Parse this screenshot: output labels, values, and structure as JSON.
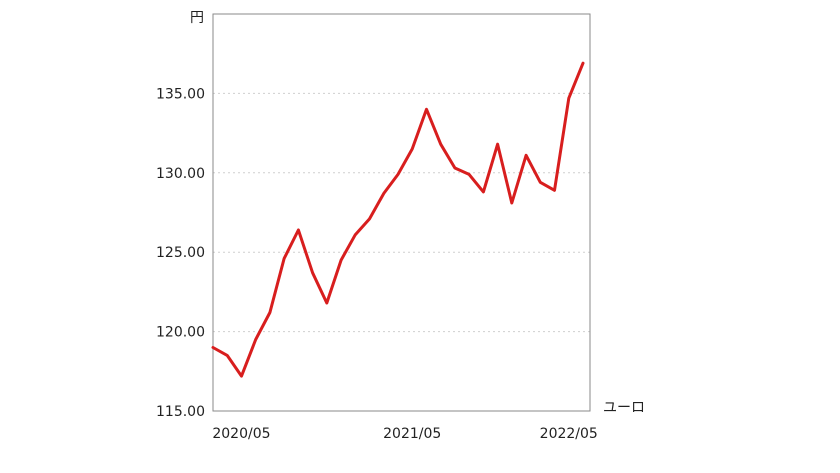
{
  "chart_data": {
    "type": "line",
    "y_unit": "円",
    "x_unit": "ユーロ",
    "ylim": [
      115,
      140
    ],
    "yticks": [
      115,
      120,
      125,
      130,
      135
    ],
    "ytick_labels": [
      "115.00",
      "120.00",
      "125.00",
      "130.00",
      "135.00"
    ],
    "xtick_labels": [
      {
        "index": 2,
        "label": "2020/05"
      },
      {
        "index": 14,
        "label": "2021/05"
      },
      {
        "index": 25,
        "label": "2022/05"
      }
    ],
    "grid": "horizontal dotted",
    "series": [
      {
        "color": "#d81e1e",
        "values": [
          119.0,
          118.5,
          117.2,
          119.5,
          121.2,
          124.6,
          126.4,
          123.7,
          121.8,
          124.5,
          126.1,
          127.1,
          128.7,
          129.9,
          131.5,
          134.0,
          131.8,
          130.3,
          129.9,
          128.8,
          131.8,
          128.1,
          131.1,
          129.4,
          128.9,
          134.7,
          136.9
        ]
      }
    ]
  }
}
